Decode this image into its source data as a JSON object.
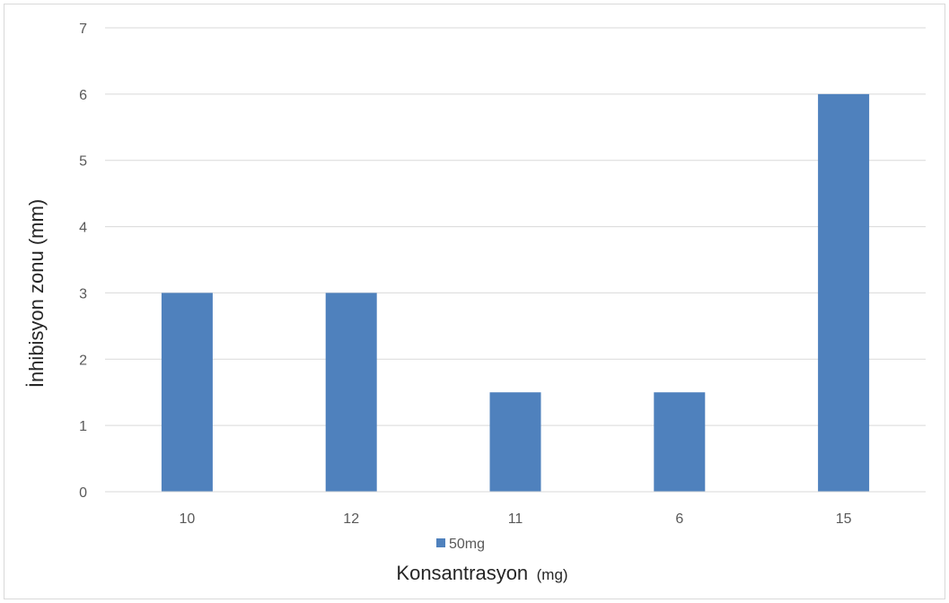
{
  "chart_data": {
    "type": "bar",
    "categories": [
      "10",
      "12",
      "11",
      "6",
      "15"
    ],
    "series": [
      {
        "name": "50mg",
        "values": [
          3,
          3,
          1.5,
          1.5,
          6
        ],
        "color": "#4f81bd"
      }
    ],
    "ylabel": "İnhibisyon zonu (mm)",
    "xlabel_main": "Konsantrasyon",
    "xlabel_unit": "(mg)",
    "ylim": [
      0,
      7
    ],
    "yticks": [
      "0",
      "1",
      "2",
      "3",
      "4",
      "5",
      "6",
      "7"
    ],
    "grid": true,
    "legend_position": "bottom",
    "gridline_color": "#d9d9d9"
  }
}
